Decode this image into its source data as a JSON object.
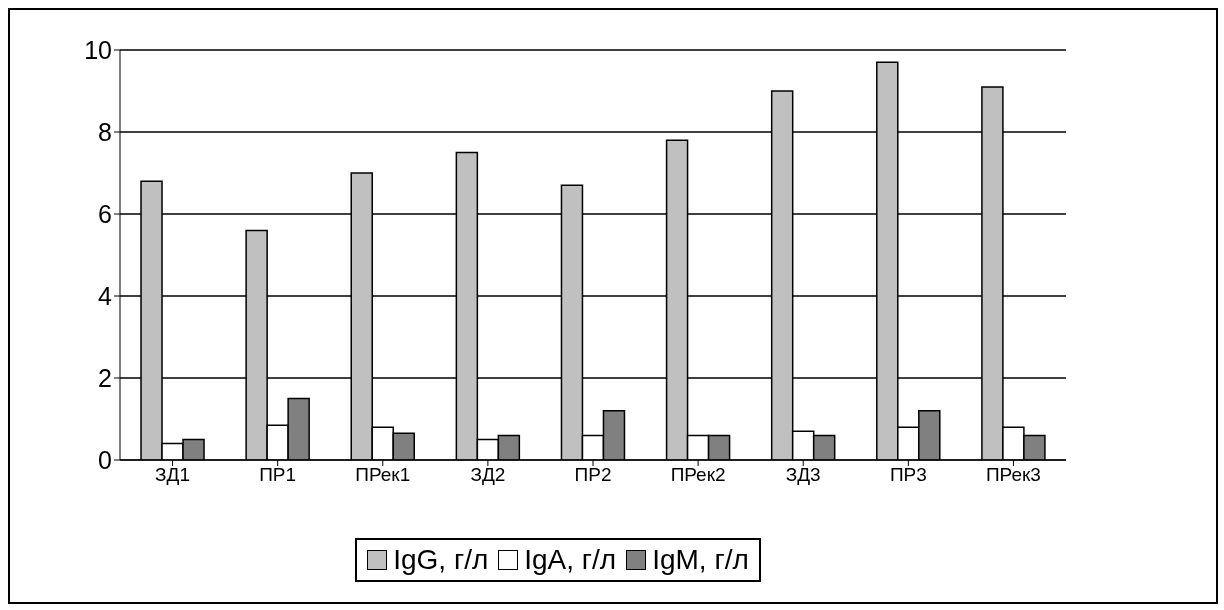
{
  "chart_data": {
    "type": "bar",
    "categories": [
      "ЗД1",
      "ПР1",
      "ПРек1",
      "ЗД2",
      "ПР2",
      "ПРек2",
      "ЗД3",
      "ПР3",
      "ПРек3"
    ],
    "series": [
      {
        "name": "IgG, г/л",
        "color": "#c0c0c0",
        "values": [
          6.8,
          5.6,
          7.0,
          7.5,
          6.7,
          7.8,
          9.0,
          9.7,
          9.1
        ]
      },
      {
        "name": "IgA, г/л",
        "color": "#ffffff",
        "values": [
          0.4,
          0.85,
          0.8,
          0.5,
          0.6,
          0.6,
          0.7,
          0.8,
          0.8
        ]
      },
      {
        "name": "IgM, г/л",
        "color": "#808080",
        "values": [
          0.5,
          1.5,
          0.65,
          0.6,
          1.2,
          0.6,
          0.6,
          1.2,
          0.6
        ]
      }
    ],
    "ylim": [
      0,
      10
    ],
    "yticks": [
      0,
      2,
      4,
      6,
      8,
      10
    ],
    "grid": "y",
    "legend": "bottom"
  }
}
